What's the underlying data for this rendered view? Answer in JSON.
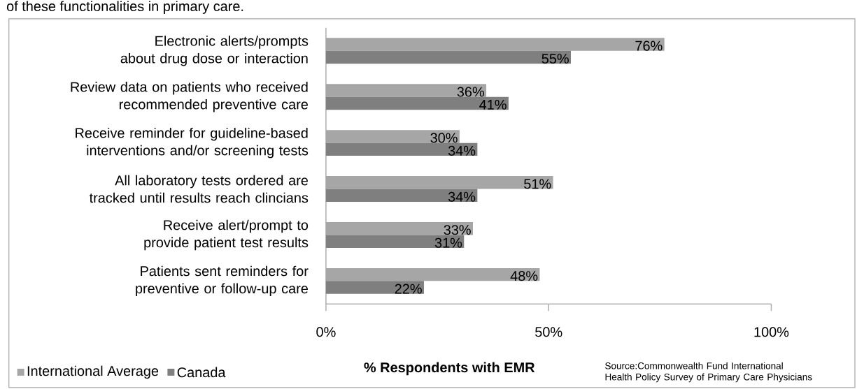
{
  "chart_data": {
    "type": "bar",
    "orientation": "horizontal",
    "title": "of these functionalities in primary care.",
    "categories": [
      "Electronic alerts/prompts about drug dose or interaction",
      "Review data on patients who received recommended preventive care",
      "Receive reminder for guideline-based interventions and/or screening tests",
      "All laboratory tests ordered are tracked until results reach clincians",
      "Receive alert/prompt to provide patient test results",
      "Patients sent reminders for preventive or follow-up care"
    ],
    "series": [
      {
        "name": "International Average",
        "color": "#a6a6a6",
        "values": [
          76,
          36,
          30,
          51,
          33,
          48
        ],
        "value_labels": [
          "76%",
          "36%",
          "30%",
          "51%",
          "33%",
          "48%"
        ]
      },
      {
        "name": "Canada",
        "color": "#7f7f7f",
        "values": [
          55,
          41,
          34,
          34,
          31,
          22
        ],
        "value_labels": [
          "55%",
          "41%",
          "34%",
          "34%",
          "31%",
          "22%"
        ]
      }
    ],
    "xlim": [
      0,
      100
    ],
    "xticks": [
      {
        "value": 0,
        "label": "0%"
      },
      {
        "value": 50,
        "label": "50%"
      },
      {
        "value": 100,
        "label": "100%"
      }
    ],
    "xlabel": "% Respondents with EMR",
    "legend": "bottom left",
    "grid": false,
    "annotations": [
      "Source:Commonwealth Fund International Health Policy Survey of Primary Care Physicians"
    ]
  }
}
